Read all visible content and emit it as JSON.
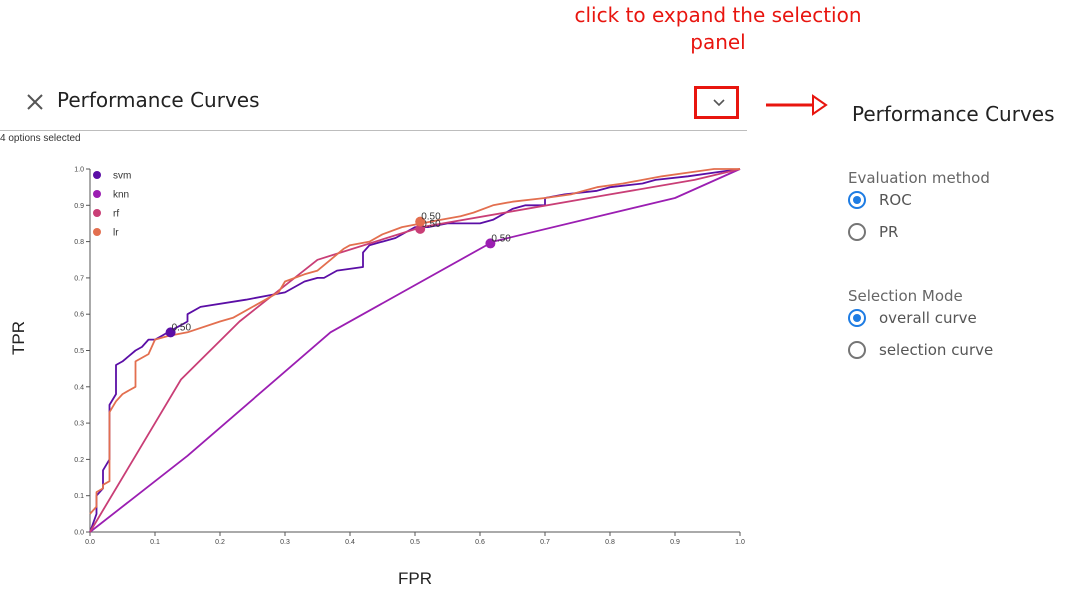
{
  "annotation": {
    "line1": "click to expand the selection",
    "line2": "panel"
  },
  "header": {
    "title": "Performance Curves",
    "close_icon": "close-icon",
    "expand_icon": "chevron-down-icon"
  },
  "selection_summary": "4 options selected",
  "chart_data": {
    "type": "line",
    "xlabel": "FPR",
    "ylabel": "TPR",
    "xlim": [
      0,
      1
    ],
    "ylim": [
      0,
      1
    ],
    "x_ticks": [
      "0.0",
      "0.1",
      "0.2",
      "0.3",
      "0.4",
      "0.5",
      "0.6",
      "0.7",
      "0.8",
      "0.9",
      "1.0"
    ],
    "y_ticks": [
      "0.0",
      "0.1",
      "0.2",
      "0.3",
      "0.4",
      "0.5",
      "0.6",
      "0.7",
      "0.8",
      "0.9",
      "1.0"
    ],
    "legend_position": "top-left",
    "series": [
      {
        "name": "svm",
        "color": "#5b0ea6",
        "x": [
          0,
          0.01,
          0.01,
          0.02,
          0.02,
          0.03,
          0.03,
          0.04,
          0.04,
          0.05,
          0.07,
          0.08,
          0.09,
          0.1,
          0.11,
          0.12,
          0.13,
          0.14,
          0.15,
          0.15,
          0.17,
          0.24,
          0.3,
          0.33,
          0.35,
          0.36,
          0.38,
          0.42,
          0.42,
          0.43,
          0.47,
          0.5,
          0.52,
          0.55,
          0.6,
          0.62,
          0.65,
          0.67,
          0.7,
          0.7,
          0.73,
          0.78,
          0.8,
          0.85,
          0.87,
          0.92,
          0.96,
          1.0
        ],
        "y": [
          0,
          0.05,
          0.1,
          0.12,
          0.17,
          0.2,
          0.35,
          0.38,
          0.46,
          0.47,
          0.5,
          0.51,
          0.53,
          0.53,
          0.54,
          0.55,
          0.56,
          0.57,
          0.58,
          0.6,
          0.62,
          0.64,
          0.66,
          0.69,
          0.7,
          0.7,
          0.72,
          0.73,
          0.77,
          0.79,
          0.81,
          0.84,
          0.84,
          0.85,
          0.85,
          0.86,
          0.89,
          0.9,
          0.9,
          0.92,
          0.93,
          0.94,
          0.95,
          0.96,
          0.97,
          0.98,
          0.99,
          1.0
        ],
        "threshold_point": {
          "x": 0.124,
          "y": 0.55,
          "label": "0.50"
        }
      },
      {
        "name": "knn",
        "color": "#9b1eb2",
        "x": [
          0,
          0.15,
          0.37,
          0.62,
          0.9,
          1.0
        ],
        "y": [
          0,
          0.21,
          0.55,
          0.8,
          0.92,
          1.0
        ],
        "threshold_point": {
          "x": 0.616,
          "y": 0.795,
          "label": "0.50"
        }
      },
      {
        "name": "rf",
        "color": "#c93e76",
        "x": [
          0,
          0.07,
          0.14,
          0.23,
          0.35,
          0.51,
          0.8,
          0.93,
          1.0
        ],
        "y": [
          0,
          0.21,
          0.42,
          0.58,
          0.75,
          0.84,
          0.93,
          0.97,
          1.0
        ],
        "threshold_point": {
          "x": 0.508,
          "y": 0.835,
          "label": "0.50"
        }
      },
      {
        "name": "lr",
        "color": "#e36f4f",
        "x": [
          0,
          0.01,
          0.01,
          0.02,
          0.02,
          0.03,
          0.03,
          0.04,
          0.05,
          0.06,
          0.07,
          0.07,
          0.09,
          0.1,
          0.12,
          0.15,
          0.2,
          0.22,
          0.25,
          0.29,
          0.3,
          0.33,
          0.35,
          0.37,
          0.39,
          0.4,
          0.43,
          0.45,
          0.48,
          0.51,
          0.54,
          0.57,
          0.59,
          0.62,
          0.65,
          0.7,
          0.74,
          0.76,
          0.78,
          0.82,
          0.85,
          0.88,
          0.92,
          0.96,
          1.0
        ],
        "y": [
          0.05,
          0.07,
          0.11,
          0.12,
          0.13,
          0.14,
          0.33,
          0.36,
          0.38,
          0.39,
          0.4,
          0.47,
          0.49,
          0.53,
          0.54,
          0.55,
          0.58,
          0.59,
          0.62,
          0.66,
          0.69,
          0.71,
          0.72,
          0.75,
          0.78,
          0.79,
          0.8,
          0.82,
          0.84,
          0.85,
          0.86,
          0.87,
          0.88,
          0.9,
          0.91,
          0.92,
          0.93,
          0.94,
          0.95,
          0.96,
          0.97,
          0.98,
          0.99,
          1.0,
          1.0
        ],
        "threshold_point": {
          "x": 0.508,
          "y": 0.855,
          "label": "0.50"
        }
      }
    ]
  },
  "panel": {
    "title": "Performance Curves",
    "evaluation_method": {
      "label": "Evaluation method",
      "options": [
        "ROC",
        "PR"
      ],
      "selected": "ROC"
    },
    "selection_mode": {
      "label": "Selection Mode",
      "options": [
        "overall curve",
        "selection curve"
      ],
      "selected": "overall curve"
    }
  }
}
